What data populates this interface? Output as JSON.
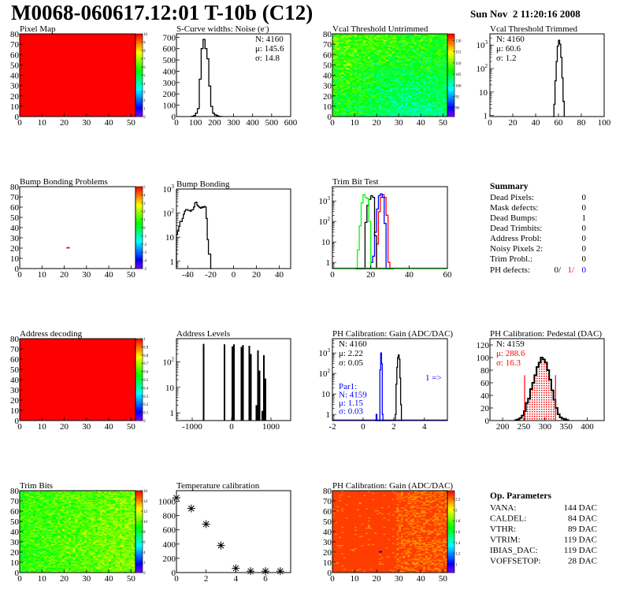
{
  "header": {
    "title": "M0068-060617.12:01 T-10b (C12)",
    "date": "Sun Nov  2 11:20:16 2008"
  },
  "summary": {
    "title": "Summary",
    "rows": [
      {
        "label": "Dead Pixels:",
        "value": "0"
      },
      {
        "label": "Mask defects:",
        "value": "0"
      },
      {
        "label": "Dead Bumps:",
        "value": "1"
      },
      {
        "label": "Dead Trimbits:",
        "value": "0"
      },
      {
        "label": "Address Probl:",
        "value": "0"
      },
      {
        "label": "Noisy Pixels 2:",
        "value": "0"
      },
      {
        "label": "Trim Probl.:",
        "value": "0"
      }
    ],
    "ph_defects": {
      "label": "PH defects:",
      "v1": "0/",
      "v2": "1/",
      "v3": "0",
      "c1": "#000000",
      "c2": "#ff0000",
      "c3": "#0000ff"
    }
  },
  "op_params": {
    "title": "Op. Parameters",
    "rows": [
      {
        "label": "VANA:",
        "value": "144 DAC"
      },
      {
        "label": "CALDEL:",
        "value": "84 DAC"
      },
      {
        "label": "VTHR:",
        "value": "89 DAC"
      },
      {
        "label": "VTRIM:",
        "value": "119 DAC"
      },
      {
        "label": "IBIAS_DAC:",
        "value": "119 DAC"
      },
      {
        "label": "VOFFSETOP:",
        "value": "28 DAC"
      }
    ]
  },
  "chart_data": [
    {
      "type": "heatmap",
      "title": "Pixel Map",
      "xlim": [
        0,
        52
      ],
      "ylim": [
        0,
        80
      ],
      "zlim": [
        0,
        10
      ],
      "xticks": [
        0,
        10,
        20,
        30,
        40,
        50
      ],
      "yticks": [
        0,
        10,
        20,
        30,
        40,
        50,
        60,
        70,
        80
      ],
      "ztick_labels": [
        "0",
        "1",
        "2",
        "3",
        "4",
        "5",
        "6",
        "7",
        "8",
        "9",
        "10"
      ],
      "uniform_value": 10
    },
    {
      "type": "bar",
      "title": "S-Curve widths: Noise (e",
      "title_sup": "-",
      "title_end": ")",
      "xlim": [
        0,
        600
      ],
      "ylim": [
        0,
        730
      ],
      "xticks": [
        0,
        100,
        200,
        300,
        400,
        500,
        600
      ],
      "yticks": [
        0,
        100,
        200,
        300,
        400,
        500,
        600,
        700
      ],
      "bin_start": 80,
      "bin_width": 10,
      "series": [
        {
          "color": "#000000",
          "values": [
            2,
            10,
            30,
            70,
            330,
            600,
            680,
            600,
            510,
            270,
            90,
            30,
            15,
            8,
            3,
            1
          ]
        }
      ],
      "stats": [
        {
          "text": "N: 4160",
          "color": "#000000"
        },
        {
          "text": "μ: 145.6",
          "color": "#000000"
        },
        {
          "text": "σ: 14.8",
          "color": "#000000"
        }
      ]
    },
    {
      "type": "heatmap",
      "title": "Vcal Threshold Untrimmed",
      "xlim": [
        0,
        52
      ],
      "ylim": [
        0,
        80
      ],
      "zlim": [
        86,
        123
      ],
      "xticks": [
        0,
        10,
        20,
        30,
        40,
        50
      ],
      "yticks": [
        0,
        10,
        20,
        30,
        40,
        50,
        60,
        70,
        80
      ],
      "ztick_values": [
        90,
        95,
        100,
        105,
        110,
        115,
        120
      ],
      "mean": 104,
      "spread": 3.5
    },
    {
      "type": "bar",
      "title": "Vcal Threshold Trimmed",
      "xlim": [
        0,
        100
      ],
      "ylim": [
        0.9,
        3000
      ],
      "log_y": true,
      "xticks": [
        0,
        20,
        40,
        60,
        80,
        100
      ],
      "bin_start": 55,
      "bin_width": 1,
      "series": [
        {
          "color": "#000000",
          "values": [
            0,
            3,
            30,
            200,
            900,
            1600,
            1100,
            300,
            40,
            4
          ]
        }
      ],
      "stats": [
        {
          "text": "N: 4160",
          "color": "#000000"
        },
        {
          "text": "μ: 60.6",
          "color": "#000000"
        },
        {
          "text": "σ:  1.2",
          "color": "#000000"
        }
      ]
    },
    {
      "type": "heatmap",
      "title": "Bump Bonding Problems",
      "xlim": [
        0,
        52
      ],
      "ylim": [
        0,
        80
      ],
      "zlim": [
        -5,
        5
      ],
      "xticks": [
        0,
        10,
        20,
        30,
        40,
        50
      ],
      "yticks": [
        0,
        10,
        20,
        30,
        40,
        50,
        60,
        70,
        80
      ],
      "ztick_labels": [
        "-5",
        "-4",
        "-3",
        "-2",
        "-1",
        "0",
        "1",
        "2",
        "3",
        "4",
        "5"
      ],
      "cells": [
        {
          "x": 21,
          "y": 20,
          "z": 5
        }
      ]
    },
    {
      "type": "bar",
      "title": "Bump Bonding",
      "xlim": [
        -50,
        50
      ],
      "ylim": [
        0.5,
        1000
      ],
      "log_y": true,
      "xticks": [
        -40,
        -20,
        0,
        20,
        40
      ],
      "bin_start": -50,
      "bin_width": 1,
      "series": [
        {
          "color": "#000000",
          "values": [
            13,
            18,
            28,
            45,
            45,
            60,
            90,
            120,
            140,
            140,
            130,
            130,
            120,
            135,
            140,
            180,
            270,
            280,
            210,
            190,
            170,
            160,
            180,
            170,
            190,
            180,
            60,
            8,
            2,
            2,
            0
          ]
        }
      ]
    },
    {
      "type": "bar",
      "title": "Trim Bit Test",
      "xlim": [
        0,
        60
      ],
      "ylim": [
        0.5,
        5000
      ],
      "log_y": true,
      "xticks": [
        0,
        20,
        40,
        60
      ],
      "bin_start": 12,
      "bin_width": 1,
      "series": [
        {
          "color": "#ff0000",
          "values": [
            0,
            0,
            0,
            0,
            0,
            0,
            0,
            0,
            0,
            0,
            0,
            8,
            300,
            1500,
            2000,
            1500,
            200,
            1,
            0,
            0
          ]
        },
        {
          "color": "#0000ff",
          "values": [
            0,
            0,
            0,
            0,
            0,
            0,
            0,
            0,
            1,
            2,
            30,
            400,
            1800,
            2200,
            1500,
            80,
            0,
            0,
            0,
            0
          ]
        },
        {
          "color": "#000000",
          "values": [
            0,
            0,
            0,
            0,
            0,
            90,
            600,
            1200,
            1800,
            1500,
            20,
            0,
            0,
            0,
            0,
            0,
            0,
            0,
            0,
            0
          ]
        },
        {
          "color": "#00ff00",
          "values": [
            0,
            4,
            60,
            800,
            2000,
            1500,
            1300,
            100,
            0,
            0,
            0,
            0,
            0,
            0,
            0,
            0,
            0,
            0,
            0,
            0
          ]
        }
      ]
    },
    {
      "type": "heatmap",
      "title": "Address decoding",
      "xlim": [
        0,
        52
      ],
      "ylim": [
        0,
        80
      ],
      "zlim": [
        0,
        1
      ],
      "xticks": [
        0,
        10,
        20,
        30,
        40,
        50
      ],
      "yticks": [
        0,
        10,
        20,
        30,
        40,
        50,
        60,
        70,
        80
      ],
      "ztick_labels": [
        "0",
        "0.1",
        "0.2",
        "0.3",
        "0.4",
        "0.5",
        "0.6",
        "0.7",
        "0.8",
        "0.9",
        "1"
      ],
      "uniform_value": 1
    },
    {
      "type": "bar",
      "title": "Address Levels",
      "xlim": [
        -1400,
        1500
      ],
      "ylim": [
        0.5,
        800
      ],
      "log_y": true,
      "xticks": [
        -1000,
        0,
        1000
      ],
      "xtick_labels": [
        "-1000",
        "0",
        "1000"
      ],
      "peaks": [
        {
          "x": -730,
          "values": [
            500
          ]
        },
        {
          "x": -200,
          "values": [
            480
          ]
        },
        {
          "x": 0,
          "values": [
            400,
            480
          ]
        },
        {
          "x": 230,
          "values": [
            380,
            450
          ]
        },
        {
          "x": 430,
          "values": [
            420,
            200
          ]
        },
        {
          "x": 610,
          "values": [
            2,
            280,
            45
          ]
        },
        {
          "x": 760,
          "values": [
            1.2,
            180,
            22
          ]
        }
      ]
    },
    {
      "type": "bar",
      "title": "PH Calibration: Gain (ADC/DAC)",
      "xlim": [
        -2,
        5.5
      ],
      "ylim": [
        0.5,
        5000
      ],
      "log_y": true,
      "xticks": [
        -2,
        0,
        2,
        4
      ],
      "bin_start": 0.8,
      "bin_width": 0.05,
      "series": [
        {
          "color": "#000000",
          "values": [
            0,
            0,
            0,
            0,
            0,
            0,
            0,
            0,
            0,
            0,
            0,
            0,
            0,
            0,
            0,
            0,
            0,
            0,
            0,
            0,
            0,
            0,
            0,
            0,
            0,
            0,
            1,
            30,
            200,
            600,
            800,
            500,
            60,
            3,
            0
          ]
        },
        {
          "color": "#0000ff",
          "values": [
            0,
            1,
            0,
            0,
            0,
            0,
            150,
            1000,
            300,
            1,
            0
          ]
        }
      ],
      "annotation": {
        "text": "1 =>",
        "color": "#0000ff"
      },
      "stats": [
        {
          "text": "N: 4160",
          "color": "#000000"
        },
        {
          "text": "μ: 2.22",
          "color": "#000000"
        },
        {
          "text": "σ: 0.05",
          "color": "#000000"
        }
      ],
      "stats2": [
        {
          "text": "Par1:",
          "color": "#0000ff"
        },
        {
          "text": "N: 4159",
          "color": "#0000ff"
        },
        {
          "text": "μ: 1.15",
          "color": "#0000ff"
        },
        {
          "text": "σ: 0.03",
          "color": "#0000ff"
        }
      ]
    },
    {
      "type": "bar",
      "title": "PH Calibration: Pedestal (DAC)",
      "xlim": [
        170,
        440
      ],
      "ylim": [
        0,
        130
      ],
      "xticks": [
        200,
        250,
        300,
        350,
        400
      ],
      "yticks": [
        0,
        20,
        40,
        60,
        80,
        100,
        120
      ],
      "bin_start": 230,
      "bin_width": 5,
      "series": [
        {
          "color": "#000000",
          "values": [
            1,
            2,
            4,
            8,
            15,
            28,
            35,
            50,
            60,
            72,
            85,
            92,
            100,
            97,
            92,
            80,
            65,
            48,
            33,
            20,
            10,
            5,
            3,
            2,
            1
          ]
        }
      ],
      "fit_range": [
        252,
        325
      ],
      "fit_color": "#ff0000",
      "stats": [
        {
          "text": "N: 4159",
          "color": "#000000"
        },
        {
          "text": "μ: 288.6",
          "color": "#ff0000"
        },
        {
          "text": "σ: 16.3",
          "color": "#ff0000"
        }
      ]
    },
    {
      "type": "heatmap",
      "title": "Trim Bits",
      "xlim": [
        0,
        52
      ],
      "ylim": [
        0,
        80
      ],
      "zlim": [
        0,
        16
      ],
      "xticks": [
        0,
        10,
        20,
        30,
        40,
        50
      ],
      "yticks": [
        0,
        10,
        20,
        30,
        40,
        50,
        60,
        70,
        80
      ],
      "ztick_values": [
        0,
        2,
        4,
        6,
        8,
        10,
        12,
        14,
        16
      ],
      "mean": 9.5,
      "spread": 1.3
    },
    {
      "type": "scatter",
      "title": "Temperature calibration",
      "xlim": [
        0,
        7.7
      ],
      "ylim": [
        0,
        1150
      ],
      "xticks": [
        0,
        2,
        4,
        6
      ],
      "yticks": [
        0,
        200,
        400,
        600,
        800,
        1000
      ],
      "x": [
        0,
        1,
        2,
        3,
        4,
        5,
        6,
        7
      ],
      "y": [
        1050,
        900,
        680,
        380,
        60,
        20,
        20,
        20
      ]
    },
    {
      "type": "heatmap",
      "title": "PH Calibration: Gain (ADC/DAC)",
      "xlim": [
        0,
        52
      ],
      "ylim": [
        0,
        80
      ],
      "zlim": [
        0.85,
        2.35
      ],
      "xticks": [
        0,
        10,
        20,
        30,
        40,
        50
      ],
      "yticks": [
        0,
        10,
        20,
        30,
        40,
        50,
        60,
        70,
        80
      ],
      "ztick_values": [
        1,
        1.2,
        1.4,
        1.6,
        1.8,
        2,
        2.2
      ],
      "mean": 2.25,
      "spread": 0.05,
      "cells": [
        {
          "x": 21,
          "y": 20,
          "z": 1.0
        }
      ]
    }
  ]
}
